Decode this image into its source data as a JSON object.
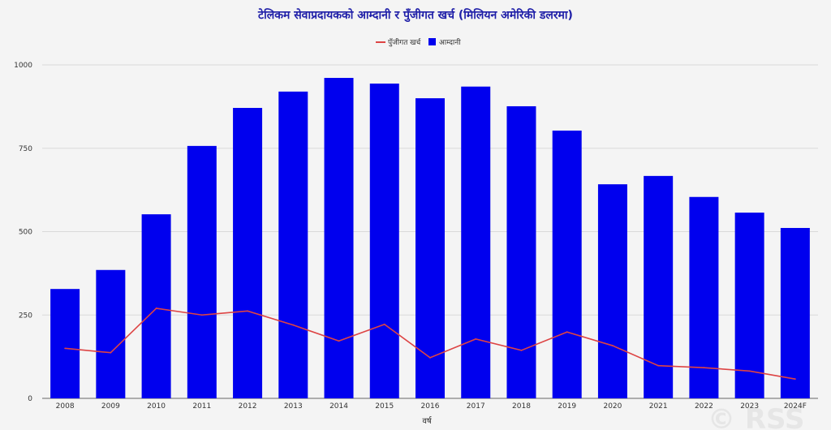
{
  "chart_data": {
    "type": "bar",
    "title": "टेलिकम सेवाप्रदायकको आम्दानी र पुँजीगत खर्च (मिलियन अमेरिकी डलरमा)",
    "xlabel": "वर्ष",
    "ylabel": "",
    "ylim": [
      0,
      1000
    ],
    "yticks": [
      0,
      250,
      500,
      750,
      1000
    ],
    "categories": [
      "2008",
      "2009",
      "2010",
      "2011",
      "2012",
      "2013",
      "2014",
      "2015",
      "2016",
      "2017",
      "2018",
      "2019",
      "2020",
      "2021",
      "2022",
      "2023",
      "2024F"
    ],
    "legend_position": "top-center",
    "grid": true,
    "series": [
      {
        "name": "आम्दानी",
        "type": "bar",
        "color": "#0000ee",
        "values": [
          328,
          385,
          552,
          757,
          871,
          920,
          961,
          944,
          900,
          935,
          876,
          803,
          642,
          667,
          604,
          557,
          511
        ]
      },
      {
        "name": "पुँजीगत खर्च",
        "type": "line",
        "color": "#dd4444",
        "values": [
          150,
          137,
          270,
          250,
          262,
          220,
          172,
          222,
          122,
          178,
          144,
          199,
          158,
          98,
          92,
          82,
          58
        ]
      }
    ]
  },
  "watermark": {
    "text": "© RSS"
  }
}
